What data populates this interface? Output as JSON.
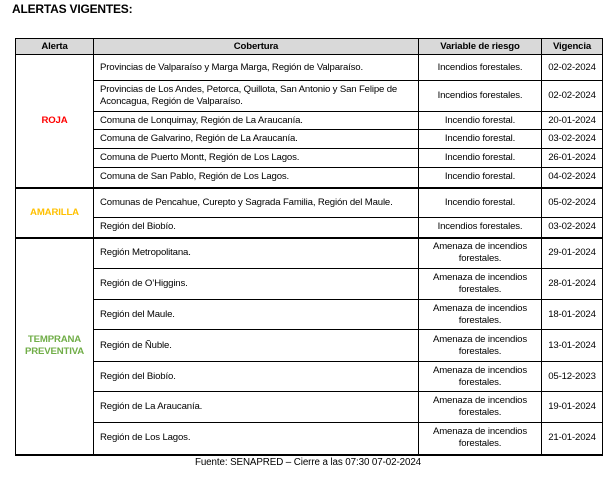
{
  "title": "ALERTAS VIGENTES:",
  "headers": [
    "Alerta",
    "Cobertura",
    "Variable de riesgo",
    "Vigencia"
  ],
  "groups": [
    {
      "alert": "ROJA",
      "color": "#ff0000",
      "rows": [
        {
          "cobertura": "Provincias de Valparaíso y Marga Marga, Región de Valparaíso.",
          "variable": "Incendios forestales.",
          "vigencia": "02-02-2024"
        },
        {
          "cobertura": "Provincias de Los Andes, Petorca, Quillota, San Antonio y San Felipe de Aconcagua, Región de Valparaíso.",
          "variable": "Incendios forestales.",
          "vigencia": "02-02-2024"
        },
        {
          "cobertura": "Comuna de Lonquimay, Región de La Araucanía.",
          "variable": "Incendio forestal.",
          "vigencia": "20-01-2024"
        },
        {
          "cobertura": "Comuna de Galvarino, Región de La Araucanía.",
          "variable": "Incendio forestal.",
          "vigencia": "03-02-2024"
        },
        {
          "cobertura": "Comuna de Puerto Montt, Región de Los Lagos.",
          "variable": "Incendio forestal.",
          "vigencia": "26-01-2024"
        },
        {
          "cobertura": "Comuna de San Pablo, Región de Los Lagos.",
          "variable": "Incendio forestal.",
          "vigencia": "04-02-2024"
        }
      ]
    },
    {
      "alert": "AMARILLA",
      "color": "#ffc000",
      "rows": [
        {
          "cobertura": "Comunas de Pencahue, Curepto y Sagrada Familia, Región del Maule.",
          "variable": "Incendio forestal.",
          "vigencia": "05-02-2024"
        },
        {
          "cobertura": "Región del Biobío.",
          "variable": "Incendios forestales.",
          "vigencia": "03-02-2024"
        }
      ]
    },
    {
      "alert": "TEMPRANA PREVENTIVA",
      "color": "#70ad47",
      "rows": [
        {
          "cobertura": "Región Metropolitana.",
          "variable": "Amenaza de incendios forestales.",
          "vigencia": "29-01-2024"
        },
        {
          "cobertura": "Región de O’Higgins.",
          "variable": "Amenaza de incendios forestales.",
          "vigencia": "28-01-2024"
        },
        {
          "cobertura": "Región del Maule.",
          "variable": "Amenaza de incendios forestales.",
          "vigencia": "18-01-2024"
        },
        {
          "cobertura": "Región de Ñuble.",
          "variable": "Amenaza de incendios forestales.",
          "vigencia": "13-01-2024"
        },
        {
          "cobertura": "Región del Biobío.",
          "variable": "Amenaza de incendios forestales.",
          "vigencia": "05-12-2023"
        },
        {
          "cobertura": "Región de La Araucanía.",
          "variable": "Amenaza de incendios forestales.",
          "vigencia": "19-01-2024"
        },
        {
          "cobertura": "Región de Los Lagos.",
          "variable": "Amenaza de incendios forestales.",
          "vigencia": "21-01-2024"
        }
      ]
    }
  ],
  "footer": "Fuente: SENAPRED – Cierre a las 07:30 07-02-2024"
}
